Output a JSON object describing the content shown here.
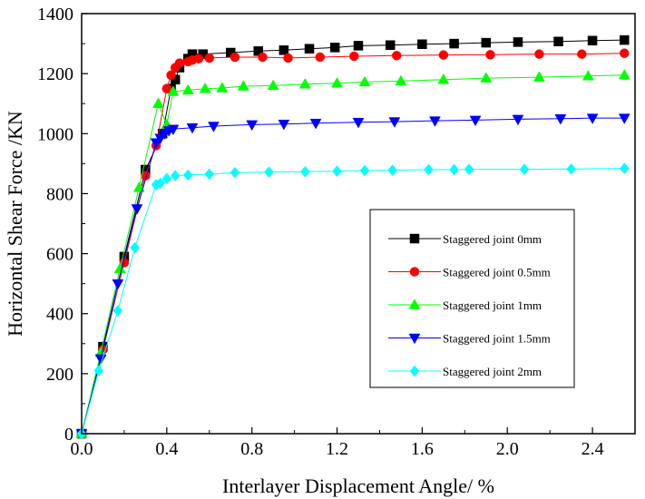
{
  "chart_data": {
    "type": "line",
    "xlabel": "Interlayer Displacement Angle/ %",
    "ylabel": "Horizontal Shear Force /KN",
    "xlim": [
      0,
      2.6
    ],
    "ylim": [
      0,
      1400
    ],
    "xticks": [
      "0.0",
      "0.4",
      "0.8",
      "1.2",
      "1.6",
      "2.0",
      "2.4"
    ],
    "xtick_values": [
      0,
      0.4,
      0.8,
      1.2,
      1.6,
      2.0,
      2.4
    ],
    "yticks": [
      "0",
      "200",
      "400",
      "600",
      "800",
      "1000",
      "1200",
      "1400"
    ],
    "ytick_values": [
      0,
      200,
      400,
      600,
      800,
      1000,
      1200,
      1400
    ],
    "grid": false,
    "legend_position": "center-right",
    "series": [
      {
        "name": "Staggered joint 0mm",
        "color": "#000000",
        "marker": "square",
        "points": [
          [
            0,
            0
          ],
          [
            0.1,
            290
          ],
          [
            0.2,
            590
          ],
          [
            0.3,
            880
          ],
          [
            0.38,
            1000
          ],
          [
            0.42,
            1150
          ],
          [
            0.44,
            1180
          ],
          [
            0.46,
            1220
          ],
          [
            0.5,
            1250
          ],
          [
            0.52,
            1265
          ],
          [
            0.57,
            1265
          ],
          [
            0.7,
            1270
          ],
          [
            0.83,
            1275
          ],
          [
            0.95,
            1278
          ],
          [
            1.07,
            1283
          ],
          [
            1.19,
            1287
          ],
          [
            1.3,
            1293
          ],
          [
            1.45,
            1295
          ],
          [
            1.6,
            1298
          ],
          [
            1.75,
            1300
          ],
          [
            1.9,
            1303
          ],
          [
            2.05,
            1305
          ],
          [
            2.24,
            1307
          ],
          [
            2.4,
            1310
          ],
          [
            2.55,
            1312
          ]
        ]
      },
      {
        "name": "Staggered joint 0.5mm",
        "color": "#ff0000",
        "marker": "circle",
        "points": [
          [
            0,
            0
          ],
          [
            0.1,
            280
          ],
          [
            0.2,
            570
          ],
          [
            0.3,
            860
          ],
          [
            0.35,
            960
          ],
          [
            0.4,
            1150
          ],
          [
            0.42,
            1195
          ],
          [
            0.44,
            1220
          ],
          [
            0.46,
            1235
          ],
          [
            0.5,
            1240
          ],
          [
            0.52,
            1245
          ],
          [
            0.55,
            1250
          ],
          [
            0.6,
            1252
          ],
          [
            0.72,
            1255
          ],
          [
            0.85,
            1255
          ],
          [
            0.97,
            1252
          ],
          [
            1.12,
            1255
          ],
          [
            1.28,
            1258
          ],
          [
            1.48,
            1260
          ],
          [
            1.7,
            1262
          ],
          [
            1.92,
            1263
          ],
          [
            2.15,
            1265
          ],
          [
            2.35,
            1265
          ],
          [
            2.55,
            1268
          ]
        ]
      },
      {
        "name": "Staggered joint 1mm",
        "color": "#00ff00",
        "marker": "triangle-up",
        "points": [
          [
            0,
            0
          ],
          [
            0.09,
            270
          ],
          [
            0.18,
            550
          ],
          [
            0.27,
            820
          ],
          [
            0.36,
            1100
          ],
          [
            0.4,
            1030
          ],
          [
            0.43,
            1140
          ],
          [
            0.5,
            1145
          ],
          [
            0.58,
            1150
          ],
          [
            0.66,
            1152
          ],
          [
            0.76,
            1158
          ],
          [
            0.9,
            1160
          ],
          [
            1.05,
            1165
          ],
          [
            1.2,
            1168
          ],
          [
            1.33,
            1172
          ],
          [
            1.5,
            1175
          ],
          [
            1.7,
            1180
          ],
          [
            1.9,
            1185
          ],
          [
            2.15,
            1188
          ],
          [
            2.38,
            1192
          ],
          [
            2.55,
            1195
          ]
        ]
      },
      {
        "name": "Staggered joint 1.5mm",
        "color": "#0000ff",
        "marker": "triangle-down",
        "points": [
          [
            0,
            0
          ],
          [
            0.09,
            250
          ],
          [
            0.17,
            500
          ],
          [
            0.26,
            750
          ],
          [
            0.35,
            970
          ],
          [
            0.37,
            985
          ],
          [
            0.39,
            1000
          ],
          [
            0.41,
            1010
          ],
          [
            0.43,
            1015
          ],
          [
            0.52,
            1020
          ],
          [
            0.62,
            1025
          ],
          [
            0.8,
            1030
          ],
          [
            0.95,
            1032
          ],
          [
            1.1,
            1035
          ],
          [
            1.3,
            1038
          ],
          [
            1.47,
            1040
          ],
          [
            1.66,
            1043
          ],
          [
            1.85,
            1045
          ],
          [
            2.05,
            1048
          ],
          [
            2.25,
            1050
          ],
          [
            2.4,
            1052
          ],
          [
            2.55,
            1052
          ]
        ]
      },
      {
        "name": "Staggered joint 2mm",
        "color": "#00ffff",
        "marker": "diamond",
        "points": [
          [
            0,
            0
          ],
          [
            0.08,
            210
          ],
          [
            0.17,
            410
          ],
          [
            0.25,
            620
          ],
          [
            0.35,
            830
          ],
          [
            0.37,
            835
          ],
          [
            0.4,
            850
          ],
          [
            0.44,
            860
          ],
          [
            0.5,
            862
          ],
          [
            0.6,
            865
          ],
          [
            0.72,
            870
          ],
          [
            0.88,
            872
          ],
          [
            1.05,
            873
          ],
          [
            1.2,
            875
          ],
          [
            1.33,
            877
          ],
          [
            1.46,
            878
          ],
          [
            1.63,
            880
          ],
          [
            1.75,
            880
          ],
          [
            1.82,
            881
          ],
          [
            2.08,
            881
          ],
          [
            2.3,
            882
          ],
          [
            2.55,
            884
          ]
        ]
      }
    ]
  }
}
